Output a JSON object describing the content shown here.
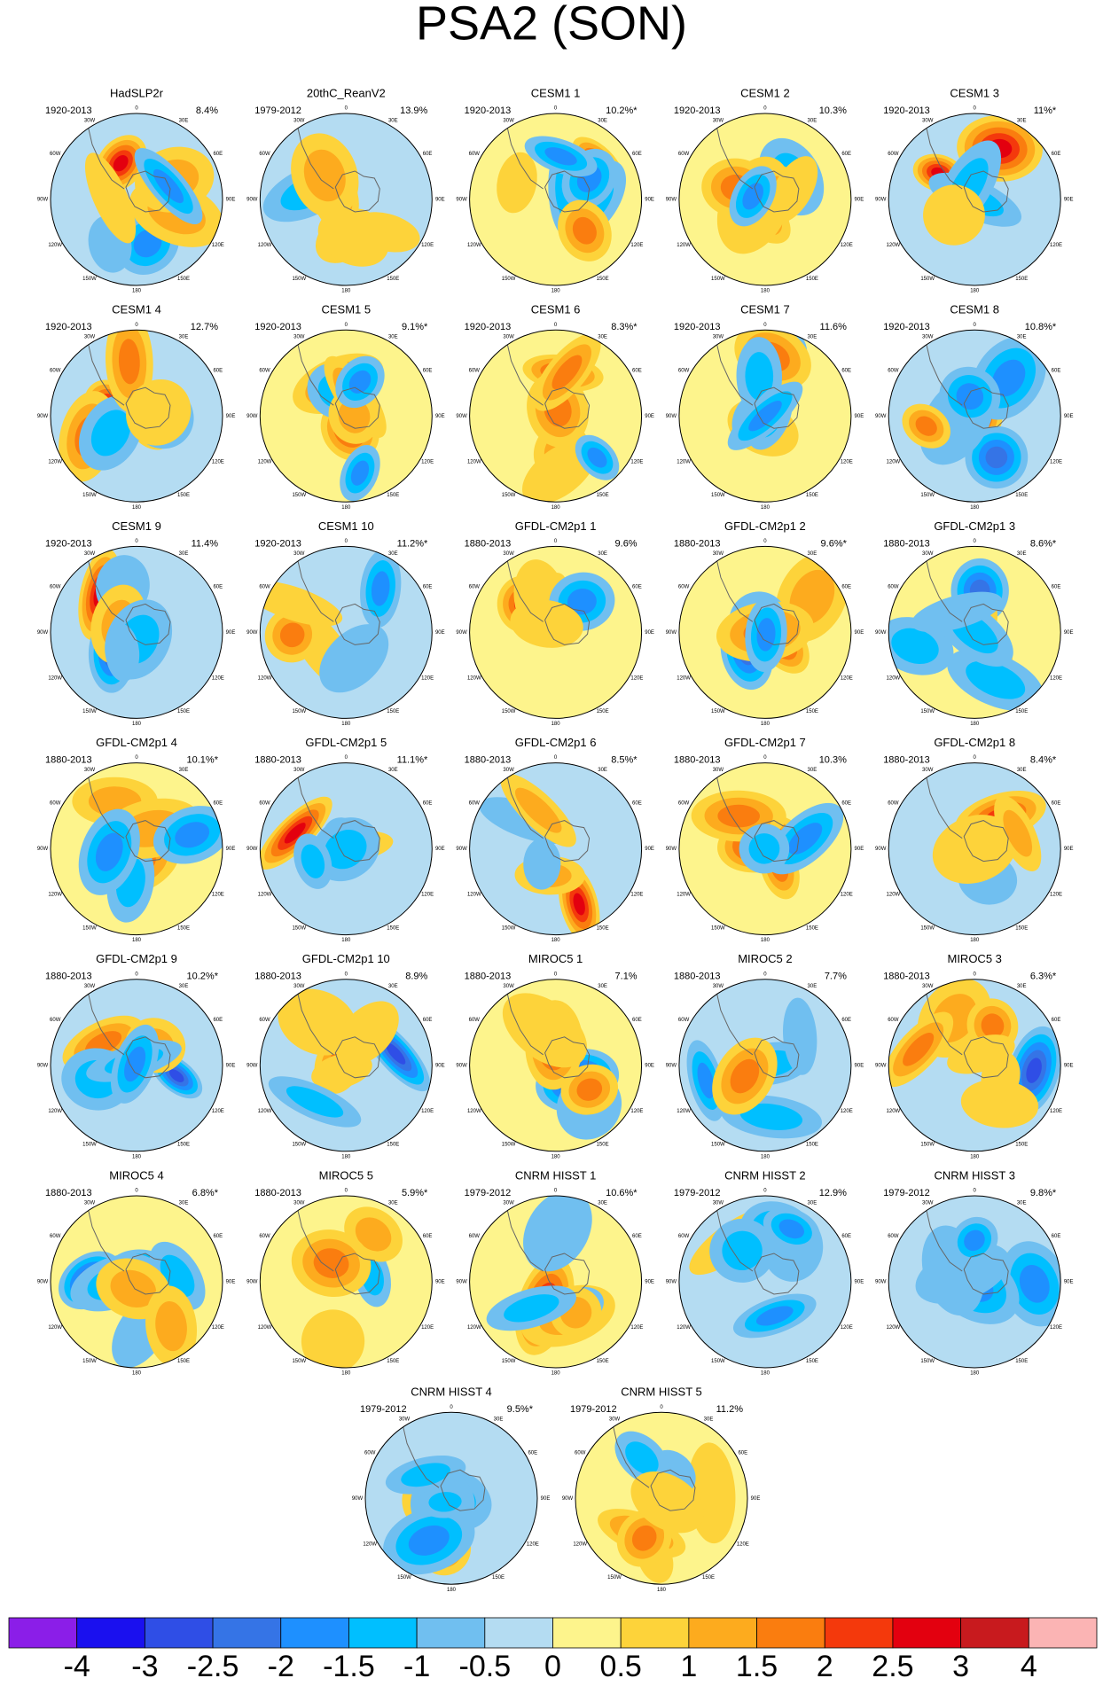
{
  "title": "PSA2 (SON)",
  "lon_labels": [
    "0",
    "30E",
    "60E",
    "90E",
    "120E",
    "150E",
    "180",
    "150W",
    "120W",
    "90W",
    "60W",
    "30W"
  ],
  "panels": [
    {
      "title": "HadSLP2r",
      "period": "1920-2013",
      "variance": "8.4%"
    },
    {
      "title": "20thC_ReanV2",
      "period": "1979-2012",
      "variance": "13.9%"
    },
    {
      "title": "CESM1 1",
      "period": "1920-2013",
      "variance": "10.2%*"
    },
    {
      "title": "CESM1 2",
      "period": "1920-2013",
      "variance": "10.3%"
    },
    {
      "title": "CESM1 3",
      "period": "1920-2013",
      "variance": "11%*"
    },
    {
      "title": "CESM1 4",
      "period": "1920-2013",
      "variance": "12.7%"
    },
    {
      "title": "CESM1 5",
      "period": "1920-2013",
      "variance": "9.1%*"
    },
    {
      "title": "CESM1 6",
      "period": "1920-2013",
      "variance": "8.3%*"
    },
    {
      "title": "CESM1 7",
      "period": "1920-2013",
      "variance": "11.6%"
    },
    {
      "title": "CESM1 8",
      "period": "1920-2013",
      "variance": "10.8%*"
    },
    {
      "title": "CESM1 9",
      "period": "1920-2013",
      "variance": "11.4%"
    },
    {
      "title": "CESM1 10",
      "period": "1920-2013",
      "variance": "11.2%*"
    },
    {
      "title": "GFDL-CM2p1 1",
      "period": "1880-2013",
      "variance": "9.6%"
    },
    {
      "title": "GFDL-CM2p1 2",
      "period": "1880-2013",
      "variance": "9.6%*"
    },
    {
      "title": "GFDL-CM2p1 3",
      "period": "1880-2013",
      "variance": "8.6%*"
    },
    {
      "title": "GFDL-CM2p1 4",
      "period": "1880-2013",
      "variance": "10.1%*"
    },
    {
      "title": "GFDL-CM2p1 5",
      "period": "1880-2013",
      "variance": "11.1%*"
    },
    {
      "title": "GFDL-CM2p1 6",
      "period": "1880-2013",
      "variance": "8.5%*"
    },
    {
      "title": "GFDL-CM2p1 7",
      "period": "1880-2013",
      "variance": "10.3%"
    },
    {
      "title": "GFDL-CM2p1 8",
      "period": "1880-2013",
      "variance": "8.4%*"
    },
    {
      "title": "GFDL-CM2p1 9",
      "period": "1880-2013",
      "variance": "10.2%*"
    },
    {
      "title": "GFDL-CM2p1 10",
      "period": "1880-2013",
      "variance": "8.9%"
    },
    {
      "title": "MIROC5 1",
      "period": "1880-2013",
      "variance": "7.1%"
    },
    {
      "title": "MIROC5 2",
      "period": "1880-2013",
      "variance": "7.7%"
    },
    {
      "title": "MIROC5 3",
      "period": "1880-2013",
      "variance": "6.3%*"
    },
    {
      "title": "MIROC5 4",
      "period": "1880-2013",
      "variance": "6.8%*"
    },
    {
      "title": "MIROC5 5",
      "period": "1880-2013",
      "variance": "5.9%*"
    },
    {
      "title": "CNRM HISST 1",
      "period": "1979-2012",
      "variance": "10.6%*"
    },
    {
      "title": "CNRM HISST 2",
      "period": "1979-2012",
      "variance": "12.9%"
    },
    {
      "title": "CNRM HISST 3",
      "period": "1979-2012",
      "variance": "9.8%*"
    },
    {
      "title": "CNRM HISST 4",
      "period": "1979-2012",
      "variance": "9.5%*"
    },
    {
      "title": "CNRM HISST 5",
      "period": "1979-2012",
      "variance": "11.2%"
    }
  ],
  "colorbar": {
    "bounds": [
      -4,
      -3,
      -2.5,
      -2,
      -1.5,
      -1,
      -0.5,
      0,
      0.5,
      1,
      1.5,
      2,
      2.5,
      3,
      4
    ],
    "colors": [
      "#8b1ee8",
      "#1a10ef",
      "#2f4ee6",
      "#3574e6",
      "#1e90ff",
      "#00bfff",
      "#70bff0",
      "#b4dcf2",
      "#fdf48c",
      "#fdd33a",
      "#fdab1e",
      "#fa7d0f",
      "#f4390c",
      "#e3000f",
      "#c81a1e",
      "#fbb4b4"
    ]
  }
}
